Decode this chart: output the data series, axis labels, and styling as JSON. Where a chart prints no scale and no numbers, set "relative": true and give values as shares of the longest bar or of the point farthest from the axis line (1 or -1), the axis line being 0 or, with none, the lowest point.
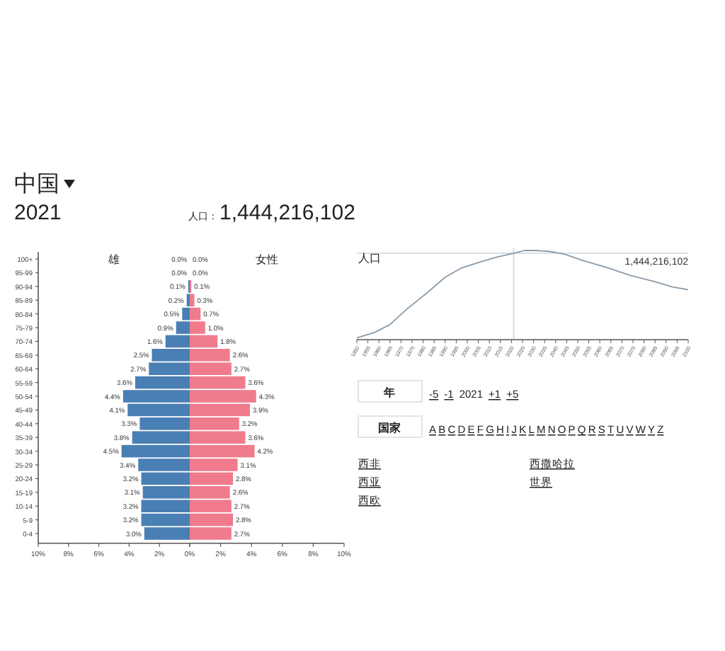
{
  "chart_data": [
    {
      "type": "other",
      "title": "中国",
      "subtitle": "2021",
      "annotations": [
        "人口：",
        "1,444,216,102"
      ]
    },
    {
      "type": "bar",
      "orientation": "horizontal",
      "title": "雄",
      "categories": [
        "100+",
        "95-99",
        "90-94",
        "85-89",
        "80-84",
        "75-79",
        "70-74",
        "65-69",
        "60-64",
        "55-59",
        "50-54",
        "45-49",
        "40-44",
        "35-39",
        "30-34",
        "25-29",
        "20-24",
        "15-19",
        "10-14",
        "5-9",
        "0-4"
      ],
      "xlim": [
        10,
        0
      ],
      "xticks": [
        {
          "value": 10,
          "label": "10%"
        },
        {
          "value": 8,
          "label": "8%"
        },
        {
          "value": 6,
          "label": "6%"
        },
        {
          "value": 4,
          "label": "4%"
        },
        {
          "value": 2,
          "label": "2%"
        },
        {
          "value": 0,
          "label": "0%"
        }
      ],
      "series": [
        {
          "color": "#4a7fb5",
          "values": [
            0.0,
            0.0,
            0.1,
            0.2,
            0.5,
            0.9,
            1.6,
            2.5,
            2.7,
            3.6,
            4.4,
            4.1,
            3.3,
            3.8,
            4.5,
            3.4,
            3.2,
            3.1,
            3.2,
            3.2,
            3.0
          ],
          "value_labels": [
            "0.0%",
            "0.0%",
            "0.1%",
            "0.2%",
            "0.5%",
            "0.9%",
            "1.6%",
            "2.5%",
            "2.7%",
            "3.6%",
            "4.4%",
            "4.1%",
            "3.3%",
            "3.8%",
            "4.5%",
            "3.4%",
            "3.2%",
            "3.1%",
            "3.2%",
            "3.2%",
            "3.0%"
          ]
        }
      ]
    },
    {
      "type": "bar",
      "orientation": "horizontal",
      "title": "女性",
      "tick_labels": "x",
      "xlim": [
        0,
        10
      ],
      "xticks": [
        {
          "value": 0,
          "label": null
        },
        {
          "value": 2,
          "label": "2%"
        },
        {
          "value": 4,
          "label": "4%"
        },
        {
          "value": 6,
          "label": "6%"
        },
        {
          "value": 8,
          "label": "8%"
        },
        {
          "value": 10,
          "label": "10%"
        }
      ],
      "series": [
        {
          "color": "#f07b8c",
          "values": [
            0.0,
            0.0,
            0.1,
            0.3,
            0.7,
            1.0,
            1.8,
            2.6,
            2.7,
            3.6,
            4.3,
            3.9,
            3.2,
            3.6,
            4.2,
            3.1,
            2.8,
            2.6,
            2.7,
            2.8,
            2.7
          ],
          "value_labels": [
            "0.0%",
            "0.0%",
            "0.1%",
            "0.3%",
            "0.7%",
            "1.0%",
            "1.8%",
            "2.6%",
            "2.7%",
            "3.6%",
            "4.3%",
            "3.9%",
            "3.2%",
            "3.6%",
            "4.2%",
            "3.1%",
            "2.8%",
            "2.6%",
            "2.7%",
            "2.8%",
            "2.7%"
          ]
        }
      ]
    },
    {
      "type": "line",
      "relative": true,
      "ylabel": "人口",
      "xlim": [
        1950,
        2100
      ],
      "xticks": [
        1950,
        1955,
        1960,
        1965,
        1970,
        1975,
        1980,
        1985,
        1990,
        1995,
        2000,
        2005,
        2010,
        2015,
        2020,
        2025,
        2030,
        2035,
        2040,
        2045,
        2050,
        2055,
        2060,
        2065,
        2070,
        2075,
        2080,
        2085,
        2090,
        2095,
        2100
      ],
      "series": [
        {
          "color": "#8a9cab",
          "x": [
            1950,
            1958,
            1965,
            1973,
            1982,
            1990,
            1997,
            2007,
            2014,
            2021,
            2026,
            2031,
            2037,
            2044,
            2052,
            2063,
            2074,
            2085,
            2093,
            2100
          ],
          "values": [
            0.02,
            0.08,
            0.17,
            0.35,
            0.53,
            0.7,
            0.8,
            0.88,
            0.93,
            0.97,
            1.0,
            1.0,
            0.99,
            0.96,
            0.89,
            0.81,
            0.72,
            0.65,
            0.59,
            0.56
          ]
        }
      ],
      "ref_lines": [
        {
          "axis": "x",
          "value": 2021,
          "color": "#d0d4d8"
        },
        {
          "axis": "y",
          "value": 0.97,
          "color": "#d0d4d8"
        }
      ],
      "annotations": [
        "1,444,216,102"
      ]
    },
    {
      "type": "other",
      "annotations": [
        "年",
        "-5",
        "-1",
        "2021",
        "+1",
        "+5",
        "国家",
        "A",
        "B",
        "C",
        "D",
        "E",
        "F",
        "G",
        "H",
        "I",
        "J",
        "K",
        "L",
        "M",
        "N",
        "O",
        "P",
        "Q",
        "R",
        "S",
        "T",
        "U",
        "V",
        "W",
        "Y",
        "Z",
        "西非",
        "西亚",
        "西欧",
        "西撒哈拉",
        "世界"
      ]
    }
  ]
}
